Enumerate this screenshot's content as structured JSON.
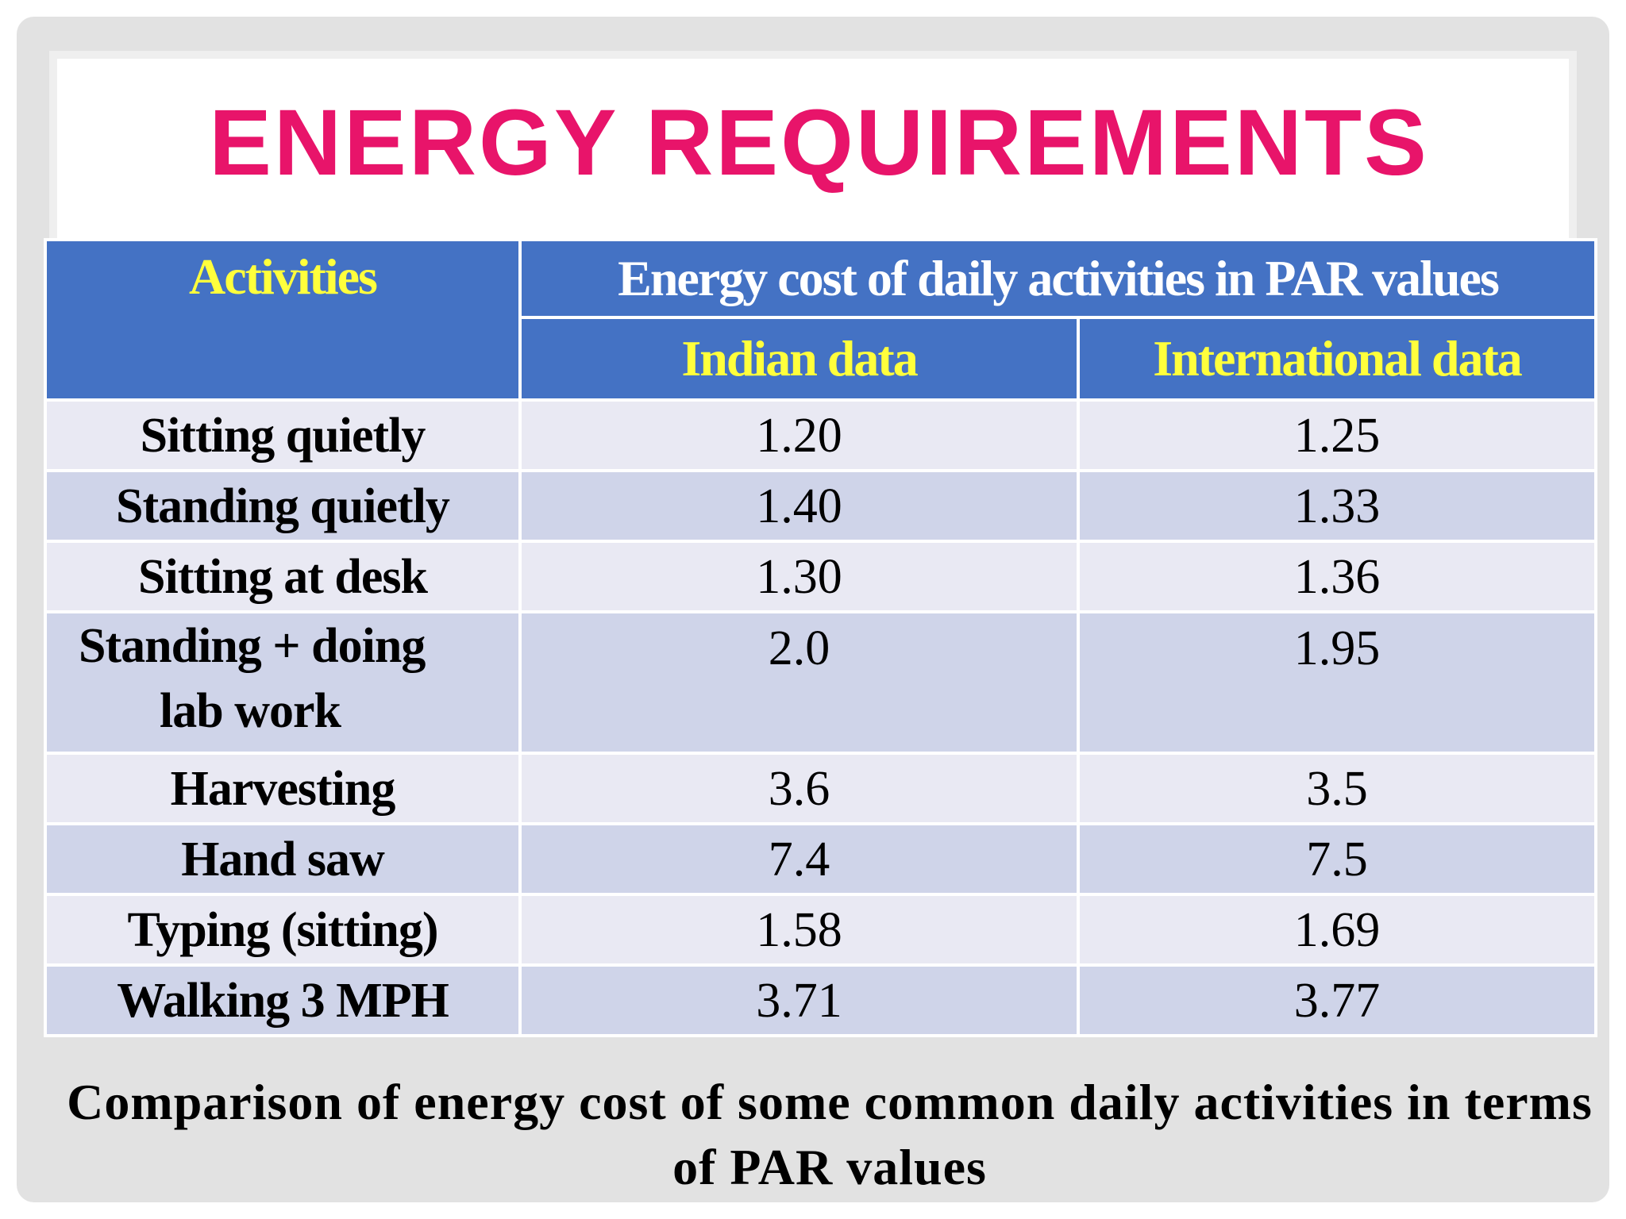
{
  "slide": {
    "title": "ENERGY REQUIREMENTS",
    "caption_line1": "Comparison of energy cost of some common daily activities in terms",
    "caption_line2": "of PAR values"
  },
  "table": {
    "activities_header": "Activities",
    "group_header": "Energy cost of daily activities in PAR values",
    "indian_header": "Indian data",
    "international_header": "International data",
    "rows": [
      {
        "activity": "Sitting quietly",
        "indian": "1.20",
        "international": "1.25"
      },
      {
        "activity": "Standing quietly",
        "indian": "1.40",
        "international": "1.33"
      },
      {
        "activity": "Sitting at desk",
        "indian": "1.30",
        "international": "1.36"
      },
      {
        "activity_line1": "Standing + doing",
        "activity_line2": "lab work",
        "indian": "2.0",
        "international": "1.95"
      },
      {
        "activity": "Harvesting",
        "indian": "3.6",
        "international": "3.5"
      },
      {
        "activity": "Hand saw",
        "indian": "7.4",
        "international": "7.5"
      },
      {
        "activity": "Typing (sitting)",
        "indian": "1.58",
        "international": "1.69"
      },
      {
        "activity": "Walking 3 MPH",
        "indian": "3.71",
        "international": "3.77"
      }
    ]
  },
  "colors": {
    "title": "#e8146a",
    "header_bg": "#4472c4",
    "header_text": "#ffff3c",
    "row_light": "#e9e9f3",
    "row_dark": "#cfd4e9"
  }
}
